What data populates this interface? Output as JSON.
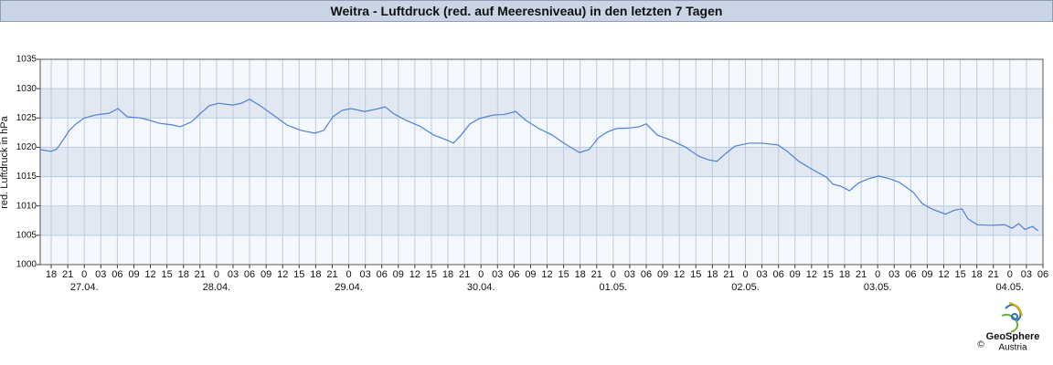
{
  "chart_data": {
    "type": "line",
    "title": "Weitra - Luftdruck (red. auf Meeresniveau) in den letzten 7 Tagen",
    "y_label": "red. Luftdruck in hPa",
    "x": [
      -8,
      -6,
      -5,
      -3.8,
      -2.7,
      -1.5,
      0,
      2,
      4.5,
      6.1,
      7.8,
      10.3,
      11.9,
      13.6,
      16.1,
      17.4,
      19.4,
      21.1,
      22.7,
      24.4,
      26.9,
      28.5,
      30,
      31.9,
      34.3,
      36.8,
      39.3,
      41.8,
      43.5,
      45.1,
      46.8,
      48.4,
      50.9,
      53.4,
      54.6,
      56.2,
      58.4,
      60.9,
      63.4,
      65.9,
      67,
      68.4,
      70,
      71.7,
      74.2,
      76.2,
      78.3,
      80,
      82.5,
      84.9,
      87.4,
      89.9,
      91.6,
      93.3,
      94.9,
      96.6,
      99.1,
      100.7,
      102,
      104,
      106.5,
      109,
      111.5,
      113.2,
      114.8,
      116.5,
      118.1,
      120.6,
      123.1,
      125.9,
      127.6,
      129.7,
      132.2,
      134.7,
      135.9,
      137.2,
      138.9,
      140.5,
      142.2,
      144.2,
      146.3,
      148,
      150.5,
      152.1,
      153.8,
      156.3,
      158,
      159.3,
      160.4,
      162.1,
      164.6,
      167.1,
      168.4,
      169.6,
      170.7,
      172.1,
      173.1
    ],
    "series": [
      {
        "name": "Luftdruck",
        "color": "#4f7fd6",
        "values": [
          1019.6,
          1019.3,
          1019.7,
          1021.3,
          1022.9,
          1024.0,
          1025.0,
          1025.5,
          1025.8,
          1026.6,
          1025.2,
          1025.0,
          1024.6,
          1024.1,
          1023.8,
          1023.5,
          1024.3,
          1025.8,
          1027.1,
          1027.5,
          1027.2,
          1027.5,
          1028.2,
          1027.1,
          1025.5,
          1023.8,
          1022.9,
          1022.4,
          1022.9,
          1025.2,
          1026.3,
          1026.6,
          1026.1,
          1026.6,
          1026.9,
          1025.7,
          1024.6,
          1023.6,
          1022.1,
          1021.2,
          1020.7,
          1022.1,
          1024.0,
          1024.9,
          1025.5,
          1025.6,
          1026.1,
          1024.7,
          1023.2,
          1022.1,
          1020.5,
          1019.1,
          1019.6,
          1021.6,
          1022.6,
          1023.2,
          1023.3,
          1023.5,
          1024.0,
          1022.1,
          1021.2,
          1020.1,
          1018.5,
          1017.9,
          1017.6,
          1019.0,
          1020.2,
          1020.7,
          1020.7,
          1020.4,
          1019.3,
          1017.6,
          1016.2,
          1014.9,
          1013.7,
          1013.4,
          1012.6,
          1013.9,
          1014.6,
          1015.1,
          1014.6,
          1014.0,
          1012.3,
          1010.4,
          1009.5,
          1008.6,
          1009.3,
          1009.5,
          1007.8,
          1006.8,
          1006.7,
          1006.8,
          1006.2,
          1007.0,
          1006.0,
          1006.5,
          1005.8
        ]
      }
    ],
    "xlim": [
      -8,
      174
    ],
    "ylim": [
      1000,
      1035
    ],
    "yticks": [
      1000,
      1005,
      1010,
      1015,
      1020,
      1025,
      1030,
      1035
    ],
    "xticks": [
      {
        "value": -6,
        "label": "18"
      },
      {
        "value": -3,
        "label": "21"
      },
      {
        "value": 0,
        "label": "0"
      },
      {
        "value": 3,
        "label": "03"
      },
      {
        "value": 6,
        "label": "06"
      },
      {
        "value": 9,
        "label": "09"
      },
      {
        "value": 12,
        "label": "12"
      },
      {
        "value": 15,
        "label": "15"
      },
      {
        "value": 18,
        "label": "18"
      },
      {
        "value": 21,
        "label": "21"
      },
      {
        "value": 24,
        "label": "0"
      },
      {
        "value": 27,
        "label": "03"
      },
      {
        "value": 30,
        "label": "06"
      },
      {
        "value": 33,
        "label": "09"
      },
      {
        "value": 36,
        "label": "12"
      },
      {
        "value": 39,
        "label": "15"
      },
      {
        "value": 42,
        "label": "18"
      },
      {
        "value": 45,
        "label": "21"
      },
      {
        "value": 48,
        "label": "0"
      },
      {
        "value": 51,
        "label": "03"
      },
      {
        "value": 54,
        "label": "06"
      },
      {
        "value": 57,
        "label": "09"
      },
      {
        "value": 60,
        "label": "12"
      },
      {
        "value": 63,
        "label": "15"
      },
      {
        "value": 66,
        "label": "18"
      },
      {
        "value": 69,
        "label": "21"
      },
      {
        "value": 72,
        "label": "0"
      },
      {
        "value": 75,
        "label": "03"
      },
      {
        "value": 78,
        "label": "06"
      },
      {
        "value": 81,
        "label": "09"
      },
      {
        "value": 84,
        "label": "12"
      },
      {
        "value": 87,
        "label": "15"
      },
      {
        "value": 90,
        "label": "18"
      },
      {
        "value": 93,
        "label": "21"
      },
      {
        "value": 96,
        "label": "0"
      },
      {
        "value": 99,
        "label": "03"
      },
      {
        "value": 102,
        "label": "06"
      },
      {
        "value": 105,
        "label": "09"
      },
      {
        "value": 108,
        "label": "12"
      },
      {
        "value": 111,
        "label": "15"
      },
      {
        "value": 114,
        "label": "18"
      },
      {
        "value": 117,
        "label": "21"
      },
      {
        "value": 120,
        "label": "0"
      },
      {
        "value": 123,
        "label": "03"
      },
      {
        "value": 126,
        "label": "06"
      },
      {
        "value": 129,
        "label": "09"
      },
      {
        "value": 132,
        "label": "12"
      },
      {
        "value": 135,
        "label": "15"
      },
      {
        "value": 138,
        "label": "18"
      },
      {
        "value": 141,
        "label": "21"
      },
      {
        "value": 144,
        "label": "0"
      },
      {
        "value": 147,
        "label": "03"
      },
      {
        "value": 150,
        "label": "06"
      },
      {
        "value": 153,
        "label": "09"
      },
      {
        "value": 156,
        "label": "12"
      },
      {
        "value": 159,
        "label": "15"
      },
      {
        "value": 162,
        "label": "18"
      },
      {
        "value": 165,
        "label": "21"
      },
      {
        "value": 168,
        "label": "0"
      },
      {
        "value": 171,
        "label": "03"
      },
      {
        "value": 174,
        "label": "06"
      }
    ],
    "date_ticks": [
      {
        "value": 0,
        "label": "27.04."
      },
      {
        "value": 24,
        "label": "28.04."
      },
      {
        "value": 48,
        "label": "29.04."
      },
      {
        "value": 72,
        "label": "30.04."
      },
      {
        "value": 96,
        "label": "01.05."
      },
      {
        "value": 120,
        "label": "02.05."
      },
      {
        "value": 144,
        "label": "03.05."
      },
      {
        "value": 168,
        "label": "04.05."
      }
    ],
    "grid": true
  },
  "logo": {
    "name": "GeoSphere",
    "sub": "Austria",
    "copyright": "©"
  }
}
